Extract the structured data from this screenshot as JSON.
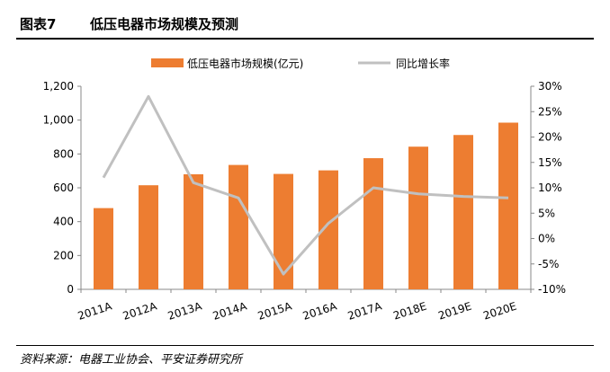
{
  "figure": {
    "number": "图表7",
    "title": "低压电器市场规模及预测",
    "source": "资料来源：电器工业协会、平安证券研究所"
  },
  "chart_data": {
    "type": "bar",
    "categories": [
      "2011A",
      "2012A",
      "2013A",
      "2014A",
      "2015A",
      "2016A",
      "2017A",
      "2018E",
      "2019E",
      "2020E"
    ],
    "series": [
      {
        "name": "低压电器市场规模(亿元)",
        "type": "bar",
        "axis": "left",
        "values": [
          480,
          615,
          680,
          735,
          682,
          703,
          775,
          843,
          912,
          985
        ],
        "color": "#ED7D31"
      },
      {
        "name": "同比增长率",
        "type": "line",
        "axis": "right",
        "values": [
          12.0,
          28.0,
          11.0,
          8.0,
          -7.0,
          3.0,
          10.0,
          8.8,
          8.3,
          8.0
        ],
        "color": "#C0C0C0"
      }
    ],
    "y_left": {
      "min": 0,
      "max": 1200,
      "ticks": [
        0,
        200,
        400,
        600,
        800,
        1000,
        1200
      ],
      "tick_labels": [
        "0",
        "200",
        "400",
        "600",
        "800",
        "1,000",
        "1,200"
      ]
    },
    "y_right": {
      "min": -10,
      "max": 30,
      "ticks": [
        -10,
        -5,
        0,
        5,
        10,
        15,
        20,
        25,
        30
      ],
      "tick_labels": [
        "-10%",
        "-5%",
        "0%",
        "5%",
        "10%",
        "15%",
        "20%",
        "25%",
        "30%"
      ]
    },
    "legend": "top-center",
    "grid": false
  }
}
